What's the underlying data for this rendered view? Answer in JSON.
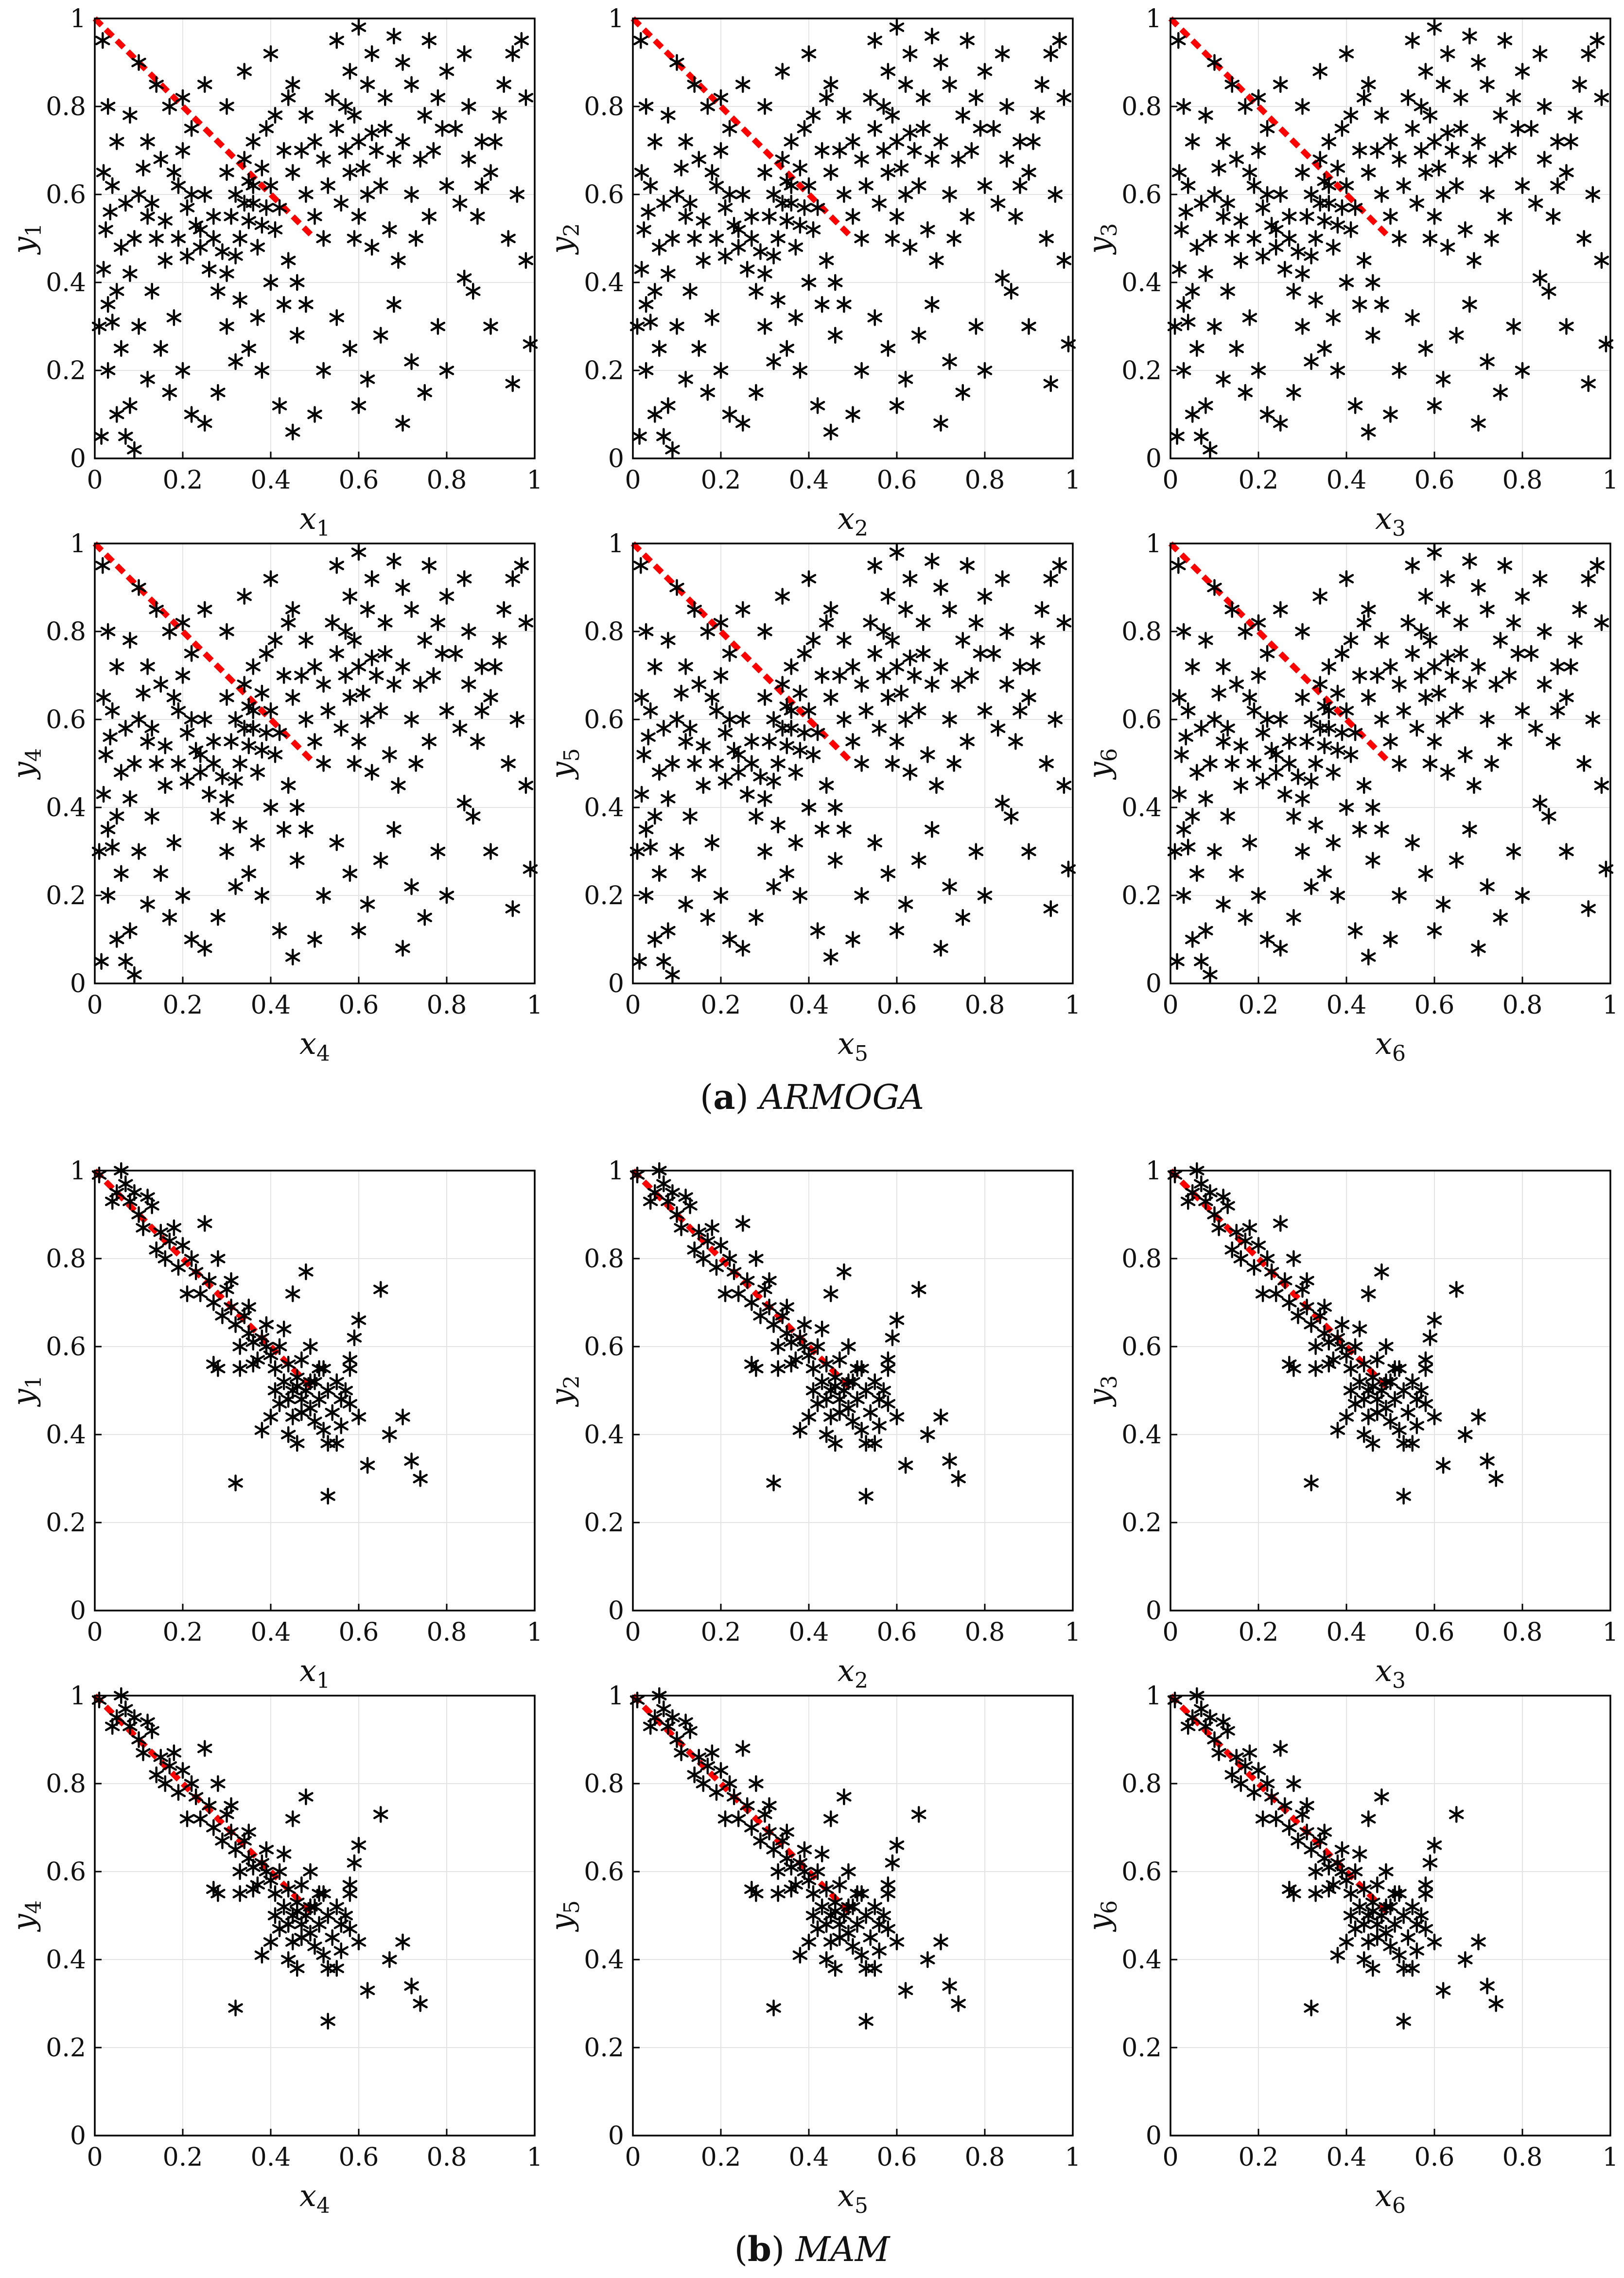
{
  "chart_data": {
    "type": "scatter",
    "xlim": [
      0,
      1
    ],
    "ylim": [
      0,
      1
    ],
    "ticks": [
      0,
      0.2,
      0.4,
      0.6,
      0.8,
      1
    ],
    "tick_labels": [
      "0",
      "0.2",
      "0.4",
      "0.6",
      "0.8",
      "1"
    ],
    "grid": true,
    "marker": "asterisk",
    "marker_color": "#000000",
    "reference_line": {
      "x": [
        0,
        0.5
      ],
      "y": [
        1,
        0.5
      ],
      "color": "#ff0000",
      "style": "dashed"
    },
    "panels": [
      {
        "caption_letter": "a",
        "caption_name": "ARMOGA",
        "points": [
          [
            0.018,
            0.95
          ],
          [
            0.03,
            0.8
          ],
          [
            0.05,
            0.72
          ],
          [
            0.02,
            0.65
          ],
          [
            0.035,
            0.56
          ],
          [
            0.06,
            0.48
          ],
          [
            0.025,
            0.52
          ],
          [
            0.04,
            0.31
          ],
          [
            0.03,
            0.2
          ],
          [
            0.05,
            0.1
          ],
          [
            0.07,
            0.05
          ],
          [
            0.09,
            0.02
          ],
          [
            0.1,
            0.9
          ],
          [
            0.08,
            0.78
          ],
          [
            0.12,
            0.72
          ],
          [
            0.15,
            0.68
          ],
          [
            0.1,
            0.6
          ],
          [
            0.12,
            0.55
          ],
          [
            0.14,
            0.5
          ],
          [
            0.16,
            0.45
          ],
          [
            0.13,
            0.38
          ],
          [
            0.18,
            0.32
          ],
          [
            0.15,
            0.25
          ],
          [
            0.2,
            0.2
          ],
          [
            0.17,
            0.15
          ],
          [
            0.22,
            0.1
          ],
          [
            0.19,
            0.62
          ],
          [
            0.21,
            0.57
          ],
          [
            0.23,
            0.53
          ],
          [
            0.25,
            0.6
          ],
          [
            0.27,
            0.55
          ],
          [
            0.24,
            0.48
          ],
          [
            0.26,
            0.43
          ],
          [
            0.28,
            0.38
          ],
          [
            0.3,
            0.65
          ],
          [
            0.32,
            0.6
          ],
          [
            0.31,
            0.55
          ],
          [
            0.33,
            0.5
          ],
          [
            0.35,
            0.63
          ],
          [
            0.34,
            0.68
          ],
          [
            0.36,
            0.58
          ],
          [
            0.38,
            0.53
          ],
          [
            0.37,
            0.48
          ],
          [
            0.4,
            0.62
          ],
          [
            0.42,
            0.57
          ],
          [
            0.41,
            0.52
          ],
          [
            0.43,
            0.7
          ],
          [
            0.39,
            0.75
          ],
          [
            0.45,
            0.65
          ],
          [
            0.44,
            0.45
          ],
          [
            0.46,
            0.4
          ],
          [
            0.48,
            0.6
          ],
          [
            0.5,
            0.55
          ],
          [
            0.52,
            0.5
          ],
          [
            0.35,
            0.25
          ],
          [
            0.38,
            0.2
          ],
          [
            0.42,
            0.12
          ],
          [
            0.45,
            0.06
          ],
          [
            0.3,
            0.3
          ],
          [
            0.32,
            0.22
          ],
          [
            0.28,
            0.15
          ],
          [
            0.25,
            0.08
          ],
          [
            0.22,
            0.75
          ],
          [
            0.2,
            0.82
          ],
          [
            0.25,
            0.85
          ],
          [
            0.3,
            0.8
          ],
          [
            0.34,
            0.88
          ],
          [
            0.4,
            0.92
          ],
          [
            0.45,
            0.85
          ],
          [
            0.48,
            0.78
          ],
          [
            0.5,
            0.72
          ],
          [
            0.52,
            0.68
          ],
          [
            0.55,
            0.75
          ],
          [
            0.57,
            0.8
          ],
          [
            0.6,
            0.72
          ],
          [
            0.58,
            0.65
          ],
          [
            0.62,
            0.6
          ],
          [
            0.6,
            0.55
          ],
          [
            0.64,
            0.7
          ],
          [
            0.66,
            0.75
          ],
          [
            0.68,
            0.68
          ],
          [
            0.7,
            0.72
          ],
          [
            0.65,
            0.62
          ],
          [
            0.72,
            0.6
          ],
          [
            0.55,
            0.95
          ],
          [
            0.6,
            0.98
          ],
          [
            0.58,
            0.88
          ],
          [
            0.62,
            0.85
          ],
          [
            0.66,
            0.82
          ],
          [
            0.7,
            0.9
          ],
          [
            0.72,
            0.85
          ],
          [
            0.75,
            0.78
          ],
          [
            0.78,
            0.82
          ],
          [
            0.8,
            0.88
          ],
          [
            0.82,
            0.75
          ],
          [
            0.85,
            0.8
          ],
          [
            0.88,
            0.72
          ],
          [
            0.9,
            0.65
          ],
          [
            0.92,
            0.78
          ],
          [
            0.95,
            0.92
          ],
          [
            0.97,
            0.95
          ],
          [
            0.98,
            0.82
          ],
          [
            0.96,
            0.6
          ],
          [
            0.94,
            0.5
          ],
          [
            0.98,
            0.45
          ],
          [
            0.99,
            0.26
          ],
          [
            0.95,
            0.17
          ],
          [
            0.9,
            0.3
          ],
          [
            0.86,
            0.38
          ],
          [
            0.84,
            0.41
          ],
          [
            0.8,
            0.2
          ],
          [
            0.78,
            0.3
          ],
          [
            0.75,
            0.15
          ],
          [
            0.72,
            0.22
          ],
          [
            0.7,
            0.08
          ],
          [
            0.68,
            0.35
          ],
          [
            0.65,
            0.28
          ],
          [
            0.62,
            0.18
          ],
          [
            0.6,
            0.12
          ],
          [
            0.58,
            0.25
          ],
          [
            0.55,
            0.32
          ],
          [
            0.52,
            0.2
          ],
          [
            0.5,
            0.1
          ],
          [
            0.48,
            0.35
          ],
          [
            0.46,
            0.28
          ],
          [
            0.05,
            0.38
          ],
          [
            0.08,
            0.42
          ],
          [
            0.1,
            0.3
          ],
          [
            0.06,
            0.25
          ],
          [
            0.12,
            0.18
          ],
          [
            0.08,
            0.12
          ],
          [
            0.14,
            0.85
          ],
          [
            0.17,
            0.8
          ],
          [
            0.2,
            0.7
          ],
          [
            0.18,
            0.65
          ],
          [
            0.22,
            0.6
          ],
          [
            0.24,
            0.52
          ],
          [
            0.29,
            0.47
          ],
          [
            0.3,
            0.42
          ],
          [
            0.33,
            0.36
          ],
          [
            0.37,
            0.32
          ],
          [
            0.4,
            0.4
          ],
          [
            0.43,
            0.35
          ],
          [
            0.36,
            0.72
          ],
          [
            0.38,
            0.66
          ],
          [
            0.41,
            0.78
          ],
          [
            0.44,
            0.82
          ],
          [
            0.47,
            0.7
          ],
          [
            0.53,
            0.62
          ],
          [
            0.56,
            0.58
          ],
          [
            0.59,
            0.5
          ],
          [
            0.63,
            0.48
          ],
          [
            0.67,
            0.52
          ],
          [
            0.69,
            0.45
          ],
          [
            0.73,
            0.5
          ],
          [
            0.76,
            0.55
          ],
          [
            0.8,
            0.62
          ],
          [
            0.83,
            0.58
          ],
          [
            0.87,
            0.55
          ],
          [
            0.74,
            0.68
          ],
          [
            0.77,
            0.7
          ],
          [
            0.79,
            0.75
          ],
          [
            0.85,
            0.68
          ],
          [
            0.88,
            0.62
          ],
          [
            0.91,
            0.72
          ],
          [
            0.93,
            0.85
          ],
          [
            0.84,
            0.92
          ],
          [
            0.76,
            0.95
          ],
          [
            0.68,
            0.96
          ],
          [
            0.63,
            0.92
          ],
          [
            0.11,
            0.66
          ],
          [
            0.13,
            0.58
          ],
          [
            0.16,
            0.54
          ],
          [
            0.09,
            0.5
          ],
          [
            0.07,
            0.58
          ],
          [
            0.04,
            0.62
          ],
          [
            0.02,
            0.43
          ],
          [
            0.01,
            0.3
          ],
          [
            0.03,
            0.35
          ],
          [
            0.015,
            0.05
          ],
          [
            0.34,
            0.58
          ],
          [
            0.35,
            0.54
          ],
          [
            0.39,
            0.57
          ],
          [
            0.36,
            0.62
          ],
          [
            0.32,
            0.46
          ],
          [
            0.27,
            0.5
          ],
          [
            0.21,
            0.46
          ],
          [
            0.19,
            0.5
          ],
          [
            0.57,
            0.7
          ],
          [
            0.61,
            0.66
          ],
          [
            0.63,
            0.74
          ],
          [
            0.59,
            0.78
          ],
          [
            0.54,
            0.82
          ]
        ]
      },
      {
        "caption_letter": "b",
        "caption_name": "MAM",
        "points": [
          [
            0.01,
            0.99
          ],
          [
            0.06,
            1.0
          ],
          [
            0.05,
            0.95
          ],
          [
            0.08,
            0.93
          ],
          [
            0.1,
            0.9
          ],
          [
            0.12,
            0.94
          ],
          [
            0.13,
            0.92
          ],
          [
            0.11,
            0.87
          ],
          [
            0.15,
            0.86
          ],
          [
            0.17,
            0.84
          ],
          [
            0.14,
            0.82
          ],
          [
            0.2,
            0.83
          ],
          [
            0.22,
            0.8
          ],
          [
            0.19,
            0.78
          ],
          [
            0.25,
            0.88
          ],
          [
            0.23,
            0.77
          ],
          [
            0.26,
            0.75
          ],
          [
            0.28,
            0.8
          ],
          [
            0.21,
            0.72
          ],
          [
            0.24,
            0.72
          ],
          [
            0.27,
            0.7
          ],
          [
            0.3,
            0.73
          ],
          [
            0.29,
            0.67
          ],
          [
            0.31,
            0.69
          ],
          [
            0.32,
            0.65
          ],
          [
            0.34,
            0.67
          ],
          [
            0.35,
            0.63
          ],
          [
            0.33,
            0.6
          ],
          [
            0.36,
            0.61
          ],
          [
            0.38,
            0.62
          ],
          [
            0.37,
            0.57
          ],
          [
            0.39,
            0.6
          ],
          [
            0.4,
            0.58
          ],
          [
            0.41,
            0.55
          ],
          [
            0.42,
            0.6
          ],
          [
            0.43,
            0.52
          ],
          [
            0.44,
            0.56
          ],
          [
            0.45,
            0.5
          ],
          [
            0.46,
            0.53
          ],
          [
            0.47,
            0.48
          ],
          [
            0.48,
            0.5
          ],
          [
            0.49,
            0.46
          ],
          [
            0.5,
            0.52
          ],
          [
            0.51,
            0.48
          ],
          [
            0.52,
            0.55
          ],
          [
            0.53,
            0.5
          ],
          [
            0.54,
            0.45
          ],
          [
            0.55,
            0.52
          ],
          [
            0.56,
            0.42
          ],
          [
            0.57,
            0.5
          ],
          [
            0.58,
            0.55
          ],
          [
            0.59,
            0.62
          ],
          [
            0.6,
            0.66
          ],
          [
            0.58,
            0.47
          ],
          [
            0.45,
            0.44
          ],
          [
            0.44,
            0.4
          ],
          [
            0.46,
            0.38
          ],
          [
            0.47,
            0.45
          ],
          [
            0.5,
            0.43
          ],
          [
            0.52,
            0.41
          ],
          [
            0.53,
            0.38
          ],
          [
            0.55,
            0.38
          ],
          [
            0.6,
            0.44
          ],
          [
            0.62,
            0.33
          ],
          [
            0.65,
            0.73
          ],
          [
            0.67,
            0.4
          ],
          [
            0.7,
            0.44
          ],
          [
            0.72,
            0.34
          ],
          [
            0.74,
            0.3
          ],
          [
            0.53,
            0.26
          ],
          [
            0.32,
            0.29
          ],
          [
            0.38,
            0.41
          ],
          [
            0.36,
            0.56
          ],
          [
            0.33,
            0.55
          ],
          [
            0.28,
            0.55
          ],
          [
            0.27,
            0.56
          ],
          [
            0.4,
            0.44
          ],
          [
            0.42,
            0.47
          ],
          [
            0.48,
            0.77
          ],
          [
            0.45,
            0.72
          ],
          [
            0.49,
            0.6
          ],
          [
            0.47,
            0.57
          ],
          [
            0.51,
            0.55
          ],
          [
            0.43,
            0.64
          ],
          [
            0.39,
            0.65
          ],
          [
            0.35,
            0.69
          ],
          [
            0.31,
            0.75
          ],
          [
            0.18,
            0.87
          ],
          [
            0.16,
            0.8
          ],
          [
            0.09,
            0.95
          ],
          [
            0.07,
            0.97
          ],
          [
            0.04,
            0.93
          ],
          [
            0.58,
            0.57
          ],
          [
            0.56,
            0.48
          ],
          [
            0.44,
            0.48
          ],
          [
            0.46,
            0.51
          ],
          [
            0.49,
            0.52
          ],
          [
            0.41,
            0.5
          ]
        ]
      }
    ],
    "subplots": [
      {
        "panel": 0,
        "xlabel": "x",
        "xsub": "1",
        "ylabel": "y",
        "ysub": "1"
      },
      {
        "panel": 0,
        "xlabel": "x",
        "xsub": "2",
        "ylabel": "y",
        "ysub": "2"
      },
      {
        "panel": 0,
        "xlabel": "x",
        "xsub": "3",
        "ylabel": "y",
        "ysub": "3"
      },
      {
        "panel": 0,
        "xlabel": "x",
        "xsub": "4",
        "ylabel": "y",
        "ysub": "4"
      },
      {
        "panel": 0,
        "xlabel": "x",
        "xsub": "5",
        "ylabel": "y",
        "ysub": "5"
      },
      {
        "panel": 0,
        "xlabel": "x",
        "xsub": "6",
        "ylabel": "y",
        "ysub": "6"
      },
      {
        "panel": 1,
        "xlabel": "x",
        "xsub": "1",
        "ylabel": "y",
        "ysub": "1"
      },
      {
        "panel": 1,
        "xlabel": "x",
        "xsub": "2",
        "ylabel": "y",
        "ysub": "2"
      },
      {
        "panel": 1,
        "xlabel": "x",
        "xsub": "3",
        "ylabel": "y",
        "ysub": "3"
      },
      {
        "panel": 1,
        "xlabel": "x",
        "xsub": "4",
        "ylabel": "y",
        "ysub": "4"
      },
      {
        "panel": 1,
        "xlabel": "x",
        "xsub": "5",
        "ylabel": "y",
        "ysub": "5"
      },
      {
        "panel": 1,
        "xlabel": "x",
        "xsub": "6",
        "ylabel": "y",
        "ysub": "6"
      }
    ]
  }
}
